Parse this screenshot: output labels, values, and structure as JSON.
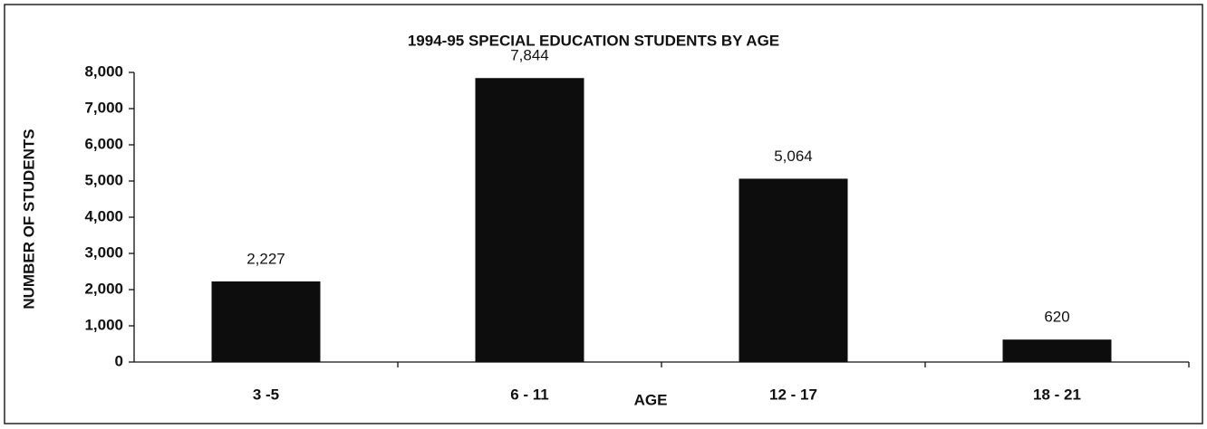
{
  "chart_data": {
    "type": "bar",
    "title": "1994-95 SPECIAL EDUCATION STUDENTS BY AGE",
    "y_label": "NUMBER OF STUDENTS",
    "x_label": "AGE",
    "categories": [
      "3 -5",
      "6 - 11",
      "12 - 17",
      "18 - 21"
    ],
    "values": [
      2227,
      7844,
      5064,
      620
    ],
    "value_labels": [
      "2,227",
      "7,844",
      "5,064",
      "620"
    ],
    "color": "#0d0d0d",
    "ylim": [
      0,
      8000
    ],
    "yticks": [
      0,
      {
        "value": 1000,
        "label": "1,000"
      },
      {
        "value": 2000,
        "label": "2,000"
      },
      {
        "value": 3000,
        "label": "3,000"
      },
      {
        "value": 4000,
        "label": "4,000"
      },
      {
        "value": 5000,
        "label": "5,000"
      },
      {
        "value": 6000,
        "label": "6,000"
      },
      {
        "value": 7000,
        "label": "7,000"
      },
      {
        "value": 8000,
        "label": "8,000"
      }
    ],
    "grid": false
  }
}
